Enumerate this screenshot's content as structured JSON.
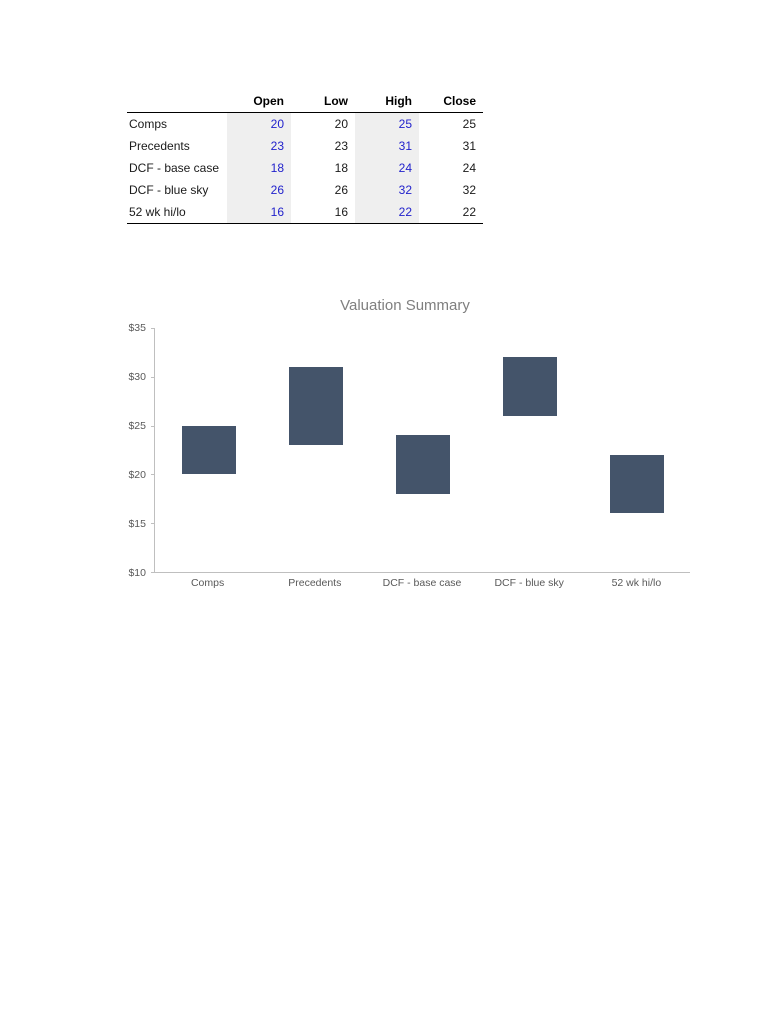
{
  "table": {
    "headers": [
      "",
      "Open",
      "Low",
      "High",
      "Close"
    ],
    "rows": [
      {
        "label": "Comps",
        "open": "20",
        "low": "20",
        "high": "25",
        "close": "25"
      },
      {
        "label": "Precedents",
        "open": "23",
        "low": "23",
        "high": "31",
        "close": "31"
      },
      {
        "label": "DCF - base case",
        "open": "18",
        "low": "18",
        "high": "24",
        "close": "24"
      },
      {
        "label": "DCF - blue sky",
        "open": "26",
        "low": "26",
        "high": "32",
        "close": "32"
      },
      {
        "label": "52 wk hi/lo",
        "open": "16",
        "low": "16",
        "high": "22",
        "close": "22"
      }
    ]
  },
  "chart_data": {
    "type": "bar",
    "subtype": "floating-range-bar",
    "title": "Valuation Summary",
    "categories": [
      "Comps",
      "Precedents",
      "DCF - base case",
      "DCF - blue sky",
      "52 wk hi/lo"
    ],
    "series": [
      {
        "name": "low",
        "values": [
          20,
          23,
          18,
          26,
          16
        ]
      },
      {
        "name": "high",
        "values": [
          25,
          31,
          24,
          32,
          22
        ]
      }
    ],
    "xlabel": "",
    "ylabel": "",
    "ylim": [
      10,
      35
    ],
    "ytick_values": [
      10,
      15,
      20,
      25,
      30,
      35
    ],
    "ytick_labels": [
      "$10",
      "$15",
      "$20",
      "$25",
      "$30",
      "$35"
    ],
    "grid": false,
    "legend": "none",
    "bar_color": "#44546a"
  },
  "colors": {
    "accent_blue": "#2222cc",
    "shade_gray": "#efefef",
    "bar": "#44546a",
    "axis_gray": "#bfbfbf",
    "label_gray": "#595959",
    "title_gray": "#7f7f7f"
  }
}
